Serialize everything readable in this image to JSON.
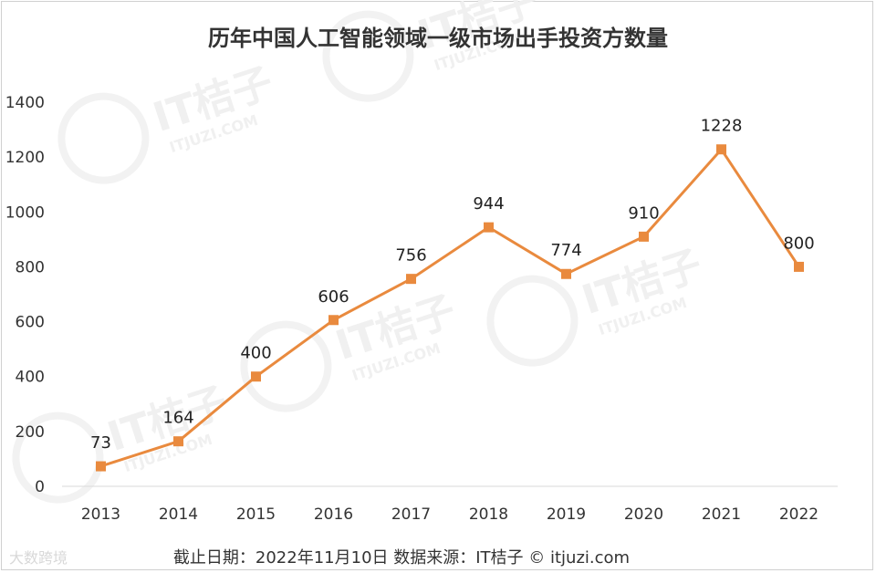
{
  "chart_data": {
    "type": "line",
    "title": "历年中国人工智能领域一级市场出手投资方数量",
    "categories": [
      "2013",
      "2014",
      "2015",
      "2016",
      "2017",
      "2018",
      "2019",
      "2020",
      "2021",
      "2022"
    ],
    "series": [
      {
        "values": [
          73,
          164,
          400,
          606,
          756,
          944,
          774,
          910,
          1228,
          800
        ]
      }
    ],
    "ylim": [
      0,
      1400
    ],
    "yticks": [
      0,
      200,
      400,
      600,
      800,
      1000,
      1200,
      1400
    ],
    "line_color": "#E98A3E",
    "grid": false,
    "legend": "none"
  },
  "footer": {
    "text": "截止日期：2022年11月10日    数据来源：IT桔子 © itjuzi.com"
  },
  "watermark": {
    "brand": "IT桔子",
    "site": "ITJUZI.COM",
    "corner_logo": "大数跨境"
  }
}
